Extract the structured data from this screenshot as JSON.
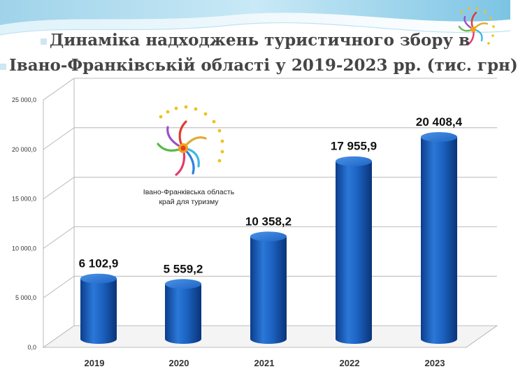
{
  "title_line1": "Динаміка надходжень туристичного збору в",
  "title_line2": "Івано-Франківській області у 2019-2023 рр. (тис. грн)",
  "logo": {
    "caption_line1": "Івано-Франківська область",
    "caption_line2": "край для туризму"
  },
  "colors": {
    "bar": "#1a63c4",
    "bar_dark": "#0b3f8e",
    "bar_top": "#3a86e0",
    "accent": "#5cc3e6"
  },
  "chart_data": {
    "type": "bar",
    "categories": [
      "2019",
      "2020",
      "2021",
      "2022",
      "2023"
    ],
    "values": [
      6102.9,
      5559.2,
      10358.2,
      17955.9,
      20408.4
    ],
    "data_labels": [
      "6 102,9",
      "5 559,2",
      "10 358,2",
      "17 955,9",
      "20 408,4"
    ],
    "title": "Динаміка надходжень туристичного збору в Івано-Франківській області у 2019-2023 рр. (тис. грн)",
    "xlabel": "",
    "ylabel": "",
    "ylim": [
      0,
      25000
    ],
    "yticks": [
      0,
      5000,
      10000,
      15000,
      20000,
      25000
    ],
    "ytick_labels": [
      "0,0",
      "5 000,0",
      "10 000,0",
      "15 000,0",
      "20 000,0",
      "25 000,0"
    ],
    "grid": true,
    "legend": "none"
  }
}
